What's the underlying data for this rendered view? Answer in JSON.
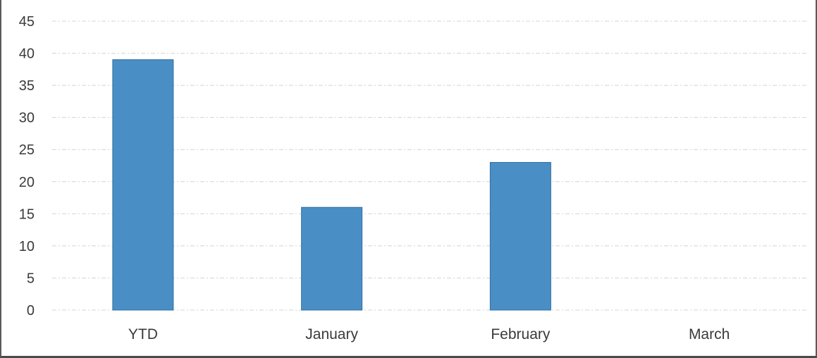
{
  "chart_data": {
    "type": "bar",
    "title": "",
    "xlabel": "",
    "ylabel": "",
    "categories": [
      "YTD",
      "January",
      "February",
      "March"
    ],
    "values": [
      39,
      16,
      23,
      0
    ],
    "ylim": [
      0,
      45
    ],
    "yticks": [
      "0",
      "5",
      "10",
      "15",
      "20",
      "25",
      "30",
      "35",
      "40",
      "45"
    ],
    "grid": true,
    "legend": "none",
    "bar_color": "#4a8ec6",
    "bar_edge_color": "#2f6f9f"
  }
}
